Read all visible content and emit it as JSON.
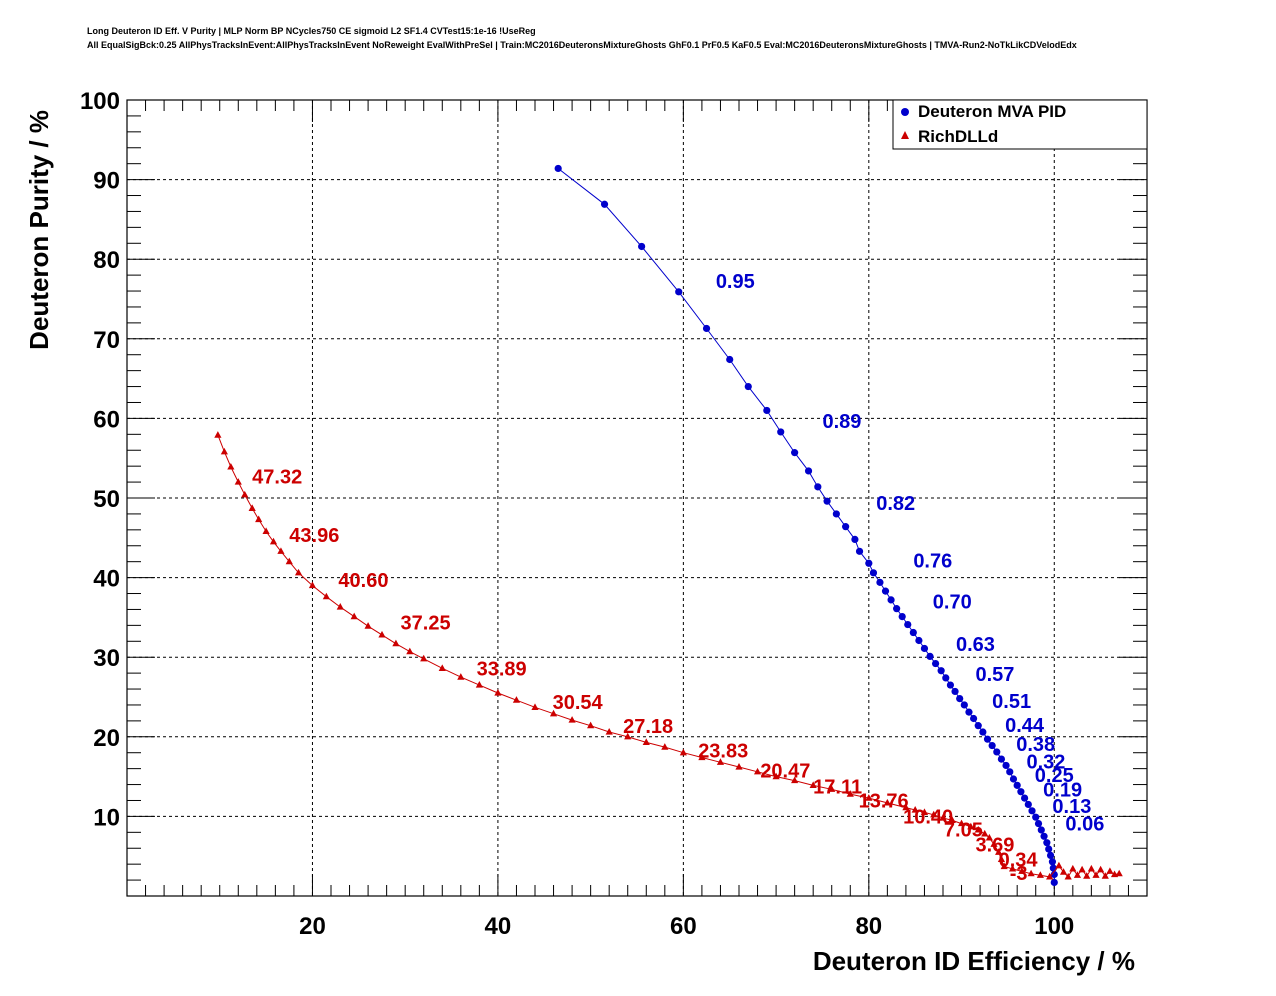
{
  "header": {
    "title_line1": "Long Deuteron ID Eff. V Purity | MLP Norm BP NCycles750 CE sigmoid L2 SF1.4 CVTest15:1e-16 !UseReg",
    "title_line2": "All EqualSigBck:0.25 AllPhysTracksInEvent:AllPhysTracksInEvent NoReweight EvalWithPreSel | Train:MC2016DeuteronsMixtureGhosts GhF0.1 PrF0.5 KaF0.5 Eval:MC2016DeuteronsMixtureGhosts | TMVA-Run2-NoTkLikCDVelodEdx"
  },
  "chart_data": {
    "type": "scatter",
    "xlabel": "Deuteron ID Efficiency / %",
    "ylabel": "Deuteron Purity / %",
    "xlim": [
      0,
      110
    ],
    "ylim": [
      0,
      100
    ],
    "xticks": [
      20,
      40,
      60,
      80,
      100
    ],
    "yticks": [
      10,
      20,
      30,
      40,
      50,
      60,
      70,
      80,
      90,
      100
    ],
    "grid": true,
    "legend_position": "top-right",
    "colors": {
      "mva": "#0000cc",
      "dll": "#cc0000"
    },
    "series": [
      {
        "name": "Deuteron MVA PID",
        "marker": "circle",
        "points": [
          [
            46.5,
            91.4
          ],
          [
            51.5,
            86.9
          ],
          [
            55.5,
            81.6
          ],
          [
            59.5,
            75.9
          ],
          [
            62.5,
            71.3
          ],
          [
            65.0,
            67.4
          ],
          [
            67.0,
            64.0
          ],
          [
            69.0,
            61.0
          ],
          [
            70.5,
            58.3
          ],
          [
            72.0,
            55.7
          ],
          [
            73.5,
            53.4
          ],
          [
            74.5,
            51.4
          ],
          [
            75.5,
            49.6
          ],
          [
            76.5,
            48.0
          ],
          [
            77.5,
            46.4
          ],
          [
            78.5,
            44.8
          ],
          [
            79.0,
            43.3
          ],
          [
            80.0,
            41.8
          ],
          [
            80.5,
            40.6
          ],
          [
            81.2,
            39.4
          ],
          [
            81.8,
            38.3
          ],
          [
            82.4,
            37.2
          ],
          [
            83.0,
            36.1
          ],
          [
            83.6,
            35.1
          ],
          [
            84.2,
            34.1
          ],
          [
            84.8,
            33.1
          ],
          [
            85.4,
            32.1
          ],
          [
            86.0,
            31.1
          ],
          [
            86.6,
            30.1
          ],
          [
            87.2,
            29.2
          ],
          [
            87.8,
            28.3
          ],
          [
            88.3,
            27.4
          ],
          [
            88.8,
            26.5
          ],
          [
            89.3,
            25.7
          ],
          [
            89.8,
            24.8
          ],
          [
            90.3,
            24.0
          ],
          [
            90.8,
            23.1
          ],
          [
            91.3,
            22.3
          ],
          [
            91.8,
            21.4
          ],
          [
            92.3,
            20.6
          ],
          [
            92.8,
            19.7
          ],
          [
            93.3,
            18.9
          ],
          [
            93.8,
            18.1
          ],
          [
            94.3,
            17.2
          ],
          [
            94.8,
            16.4
          ],
          [
            95.2,
            15.6
          ],
          [
            95.6,
            14.7
          ],
          [
            96.0,
            13.9
          ],
          [
            96.4,
            13.1
          ],
          [
            96.8,
            12.3
          ],
          [
            97.2,
            11.5
          ],
          [
            97.6,
            10.7
          ],
          [
            98.0,
            9.9
          ],
          [
            98.3,
            9.1
          ],
          [
            98.6,
            8.3
          ],
          [
            98.9,
            7.5
          ],
          [
            99.2,
            6.7
          ],
          [
            99.4,
            5.9
          ],
          [
            99.6,
            5.1
          ],
          [
            99.8,
            4.3
          ],
          [
            99.9,
            3.5
          ],
          [
            100.0,
            2.7
          ],
          [
            100.0,
            1.7
          ]
        ],
        "cut_labels": [
          {
            "text": "0.95",
            "x": 63.5,
            "y": 76.4
          },
          {
            "text": "0.89",
            "x": 75.0,
            "y": 58.8
          },
          {
            "text": "0.82",
            "x": 80.8,
            "y": 48.5
          },
          {
            "text": "0.76",
            "x": 84.8,
            "y": 41.3
          },
          {
            "text": "0.70",
            "x": 86.9,
            "y": 36.1
          },
          {
            "text": "0.63",
            "x": 89.4,
            "y": 30.8
          },
          {
            "text": "0.57",
            "x": 91.5,
            "y": 27.0
          },
          {
            "text": "0.51",
            "x": 93.3,
            "y": 23.6
          },
          {
            "text": "0.44",
            "x": 94.7,
            "y": 20.6
          },
          {
            "text": "0.38",
            "x": 95.9,
            "y": 18.2
          },
          {
            "text": "0.32",
            "x": 97.0,
            "y": 16.0
          },
          {
            "text": "0.25",
            "x": 97.9,
            "y": 14.3
          },
          {
            "text": "0.19",
            "x": 98.8,
            "y": 12.5
          },
          {
            "text": "0.13",
            "x": 99.8,
            "y": 10.4
          },
          {
            "text": "0.06",
            "x": 101.2,
            "y": 8.2
          }
        ]
      },
      {
        "name": "RichDLLd",
        "marker": "triangle",
        "points": [
          [
            9.8,
            57.9
          ],
          [
            10.5,
            55.8
          ],
          [
            11.2,
            53.9
          ],
          [
            12.0,
            52.0
          ],
          [
            12.7,
            50.4
          ],
          [
            13.5,
            48.7
          ],
          [
            14.2,
            47.3
          ],
          [
            15.0,
            45.8
          ],
          [
            15.8,
            44.5
          ],
          [
            16.6,
            43.3
          ],
          [
            17.5,
            42.0
          ],
          [
            18.5,
            40.6
          ],
          [
            20.0,
            39.0
          ],
          [
            21.5,
            37.6
          ],
          [
            23.0,
            36.3
          ],
          [
            24.5,
            35.1
          ],
          [
            26.0,
            33.9
          ],
          [
            27.5,
            32.8
          ],
          [
            29.0,
            31.7
          ],
          [
            30.5,
            30.7
          ],
          [
            32.0,
            29.8
          ],
          [
            34.0,
            28.6
          ],
          [
            36.0,
            27.5
          ],
          [
            38.0,
            26.5
          ],
          [
            40.0,
            25.5
          ],
          [
            42.0,
            24.6
          ],
          [
            44.0,
            23.7
          ],
          [
            46.0,
            22.9
          ],
          [
            48.0,
            22.1
          ],
          [
            50.0,
            21.4
          ],
          [
            52.0,
            20.6
          ],
          [
            54.0,
            20.0
          ],
          [
            56.0,
            19.3
          ],
          [
            58.0,
            18.7
          ],
          [
            60.0,
            18.0
          ],
          [
            62.0,
            17.4
          ],
          [
            64.0,
            16.8
          ],
          [
            66.0,
            16.2
          ],
          [
            68.0,
            15.6
          ],
          [
            70.0,
            15.0
          ],
          [
            72.0,
            14.5
          ],
          [
            74.0,
            13.9
          ],
          [
            76.0,
            13.4
          ],
          [
            78.0,
            12.8
          ],
          [
            80.0,
            12.3
          ],
          [
            82.0,
            11.7
          ],
          [
            84.0,
            11.1
          ],
          [
            85.0,
            10.8
          ],
          [
            86.0,
            10.5
          ],
          [
            87.0,
            10.2
          ],
          [
            88.0,
            9.8
          ],
          [
            89.0,
            9.5
          ],
          [
            90.0,
            9.1
          ],
          [
            91.0,
            8.7
          ],
          [
            91.8,
            8.3
          ],
          [
            92.5,
            7.8
          ],
          [
            93.0,
            7.3
          ],
          [
            93.5,
            6.5
          ],
          [
            94.0,
            5.5
          ],
          [
            94.3,
            4.6
          ],
          [
            94.6,
            3.7
          ],
          [
            95.5,
            3.4
          ],
          [
            96.5,
            3.1
          ],
          [
            97.5,
            2.8
          ],
          [
            98.5,
            2.6
          ],
          [
            99.5,
            2.4
          ],
          [
            100.5,
            3.8
          ],
          [
            101.0,
            3.0
          ],
          [
            101.5,
            2.4
          ],
          [
            102.0,
            3.4
          ],
          [
            102.5,
            2.6
          ],
          [
            103.0,
            3.3
          ],
          [
            103.5,
            2.5
          ],
          [
            104.0,
            3.4
          ],
          [
            104.5,
            2.6
          ],
          [
            105.0,
            3.3
          ],
          [
            105.5,
            2.5
          ],
          [
            106.0,
            3.1
          ],
          [
            106.5,
            2.7
          ],
          [
            107.0,
            2.8
          ]
        ],
        "cut_labels": [
          {
            "text": "47.32",
            "x": 13.5,
            "y": 51.8
          },
          {
            "text": "43.96",
            "x": 17.5,
            "y": 44.5
          },
          {
            "text": "40.60",
            "x": 22.8,
            "y": 38.8
          },
          {
            "text": "37.25",
            "x": 29.5,
            "y": 33.5
          },
          {
            "text": "33.89",
            "x": 37.7,
            "y": 27.7
          },
          {
            "text": "30.54",
            "x": 45.9,
            "y": 23.5
          },
          {
            "text": "27.18",
            "x": 53.5,
            "y": 20.5
          },
          {
            "text": "23.83",
            "x": 61.6,
            "y": 17.4
          },
          {
            "text": "20.47",
            "x": 68.3,
            "y": 14.9
          },
          {
            "text": "17.11",
            "x": 74.0,
            "y": 12.9
          },
          {
            "text": "13.76",
            "x": 78.9,
            "y": 11.1
          },
          {
            "text": "10.40",
            "x": 83.7,
            "y": 9.1
          },
          {
            "text": "7.05",
            "x": 88.1,
            "y": 7.5
          },
          {
            "text": "3.69",
            "x": 91.5,
            "y": 5.6
          },
          {
            "text": "0.34",
            "x": 94.0,
            "y": 3.7
          },
          {
            "text": "-3",
            "x": 95.2,
            "y": 2.0
          }
        ]
      }
    ]
  }
}
